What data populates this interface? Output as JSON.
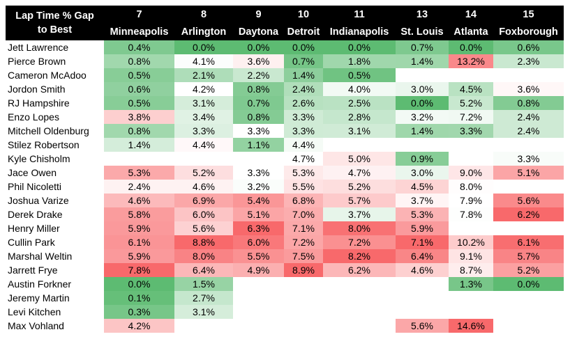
{
  "header": {
    "title_line1": "Lap Time % Gap",
    "title_line2": "to Best",
    "rounds": [
      {
        "round": "7",
        "venue": "Minneapolis"
      },
      {
        "round": "8",
        "venue": "Arlington"
      },
      {
        "round": "9",
        "venue": "Daytona"
      },
      {
        "round": "10",
        "venue": "Detroit"
      },
      {
        "round": "11",
        "venue": "Indianapolis"
      },
      {
        "round": "13",
        "venue": "St. Louis"
      },
      {
        "round": "14",
        "venue": "Atlanta"
      },
      {
        "round": "15",
        "venue": "Foxborough"
      }
    ]
  },
  "colors": {
    "green": "#5dbb72",
    "red": "#f8696b",
    "neutral": "#ffffff",
    "header_bg": "#000000",
    "header_text": "#ffffff"
  },
  "rows": [
    {
      "rider": "Jett Lawrence",
      "values": [
        "0.4%",
        "0.0%",
        "0.0%",
        "0.0%",
        "0.0%",
        "0.7%",
        "0.0%",
        "0.6%"
      ]
    },
    {
      "rider": "Pierce Brown",
      "values": [
        "0.8%",
        "4.1%",
        "3.6%",
        "0.7%",
        "1.8%",
        "1.4%",
        "13.2%",
        "2.3%"
      ]
    },
    {
      "rider": "Cameron McAdoo",
      "values": [
        "0.5%",
        "2.1%",
        "2.2%",
        "1.4%",
        "0.5%",
        "",
        "",
        ""
      ]
    },
    {
      "rider": "Jordon Smith",
      "values": [
        "0.6%",
        "4.2%",
        "0.8%",
        "2.4%",
        "4.0%",
        "3.0%",
        "4.5%",
        "3.6%"
      ]
    },
    {
      "rider": "RJ Hampshire",
      "values": [
        "0.5%",
        "3.1%",
        "0.7%",
        "2.6%",
        "2.5%",
        "0.0%",
        "5.2%",
        "0.8%"
      ]
    },
    {
      "rider": "Enzo Lopes",
      "values": [
        "3.8%",
        "3.4%",
        "0.8%",
        "3.3%",
        "2.8%",
        "3.2%",
        "7.2%",
        "2.4%"
      ]
    },
    {
      "rider": "Mitchell Oldenburg",
      "values": [
        "0.8%",
        "3.3%",
        "3.3%",
        "3.3%",
        "3.1%",
        "1.4%",
        "3.3%",
        "2.4%"
      ]
    },
    {
      "rider": "Stilez Robertson",
      "values": [
        "1.4%",
        "4.4%",
        "1.1%",
        "4.4%",
        "",
        "",
        "",
        ""
      ]
    },
    {
      "rider": "Kyle Chisholm",
      "values": [
        "",
        "",
        "",
        "4.7%",
        "5.0%",
        "0.9%",
        "",
        "3.3%"
      ]
    },
    {
      "rider": "Jace Owen",
      "values": [
        "5.3%",
        "5.2%",
        "3.3%",
        "5.3%",
        "4.7%",
        "3.0%",
        "9.0%",
        "5.1%"
      ]
    },
    {
      "rider": "Phil Nicoletti",
      "values": [
        "2.4%",
        "4.6%",
        "3.2%",
        "5.5%",
        "5.2%",
        "4.5%",
        "8.0%",
        ""
      ]
    },
    {
      "rider": "Joshua Varize",
      "values": [
        "4.6%",
        "6.9%",
        "5.4%",
        "6.8%",
        "5.7%",
        "3.7%",
        "7.9%",
        "5.6%"
      ]
    },
    {
      "rider": "Derek Drake",
      "values": [
        "5.8%",
        "6.0%",
        "5.1%",
        "7.0%",
        "3.7%",
        "5.3%",
        "7.8%",
        "6.2%"
      ]
    },
    {
      "rider": "Henry Miller",
      "values": [
        "5.9%",
        "5.6%",
        "6.3%",
        "7.1%",
        "8.0%",
        "5.9%",
        "",
        ""
      ]
    },
    {
      "rider": "Cullin Park",
      "values": [
        "6.1%",
        "8.8%",
        "6.0%",
        "7.2%",
        "7.2%",
        "7.1%",
        "10.2%",
        "6.1%"
      ]
    },
    {
      "rider": "Marshal Weltin",
      "values": [
        "5.9%",
        "8.0%",
        "5.5%",
        "7.5%",
        "8.2%",
        "6.4%",
        "9.1%",
        "5.7%"
      ]
    },
    {
      "rider": "Jarrett Frye",
      "values": [
        "7.8%",
        "6.4%",
        "4.9%",
        "8.9%",
        "6.2%",
        "4.6%",
        "8.7%",
        "5.2%"
      ]
    },
    {
      "rider": "Austin Forkner",
      "values": [
        "0.0%",
        "1.5%",
        "",
        "",
        "",
        "",
        "1.3%",
        "0.0%"
      ]
    },
    {
      "rider": "Jeremy Martin",
      "values": [
        "0.1%",
        "2.7%",
        "",
        "",
        "",
        "",
        "",
        ""
      ]
    },
    {
      "rider": "Levi Kitchen",
      "values": [
        "0.3%",
        "3.1%",
        "",
        "",
        "",
        "",
        "",
        ""
      ]
    },
    {
      "rider": "Max Vohland",
      "values": [
        "4.2%",
        "",
        "",
        "",
        "",
        "5.6%",
        "14.6%",
        ""
      ]
    }
  ]
}
